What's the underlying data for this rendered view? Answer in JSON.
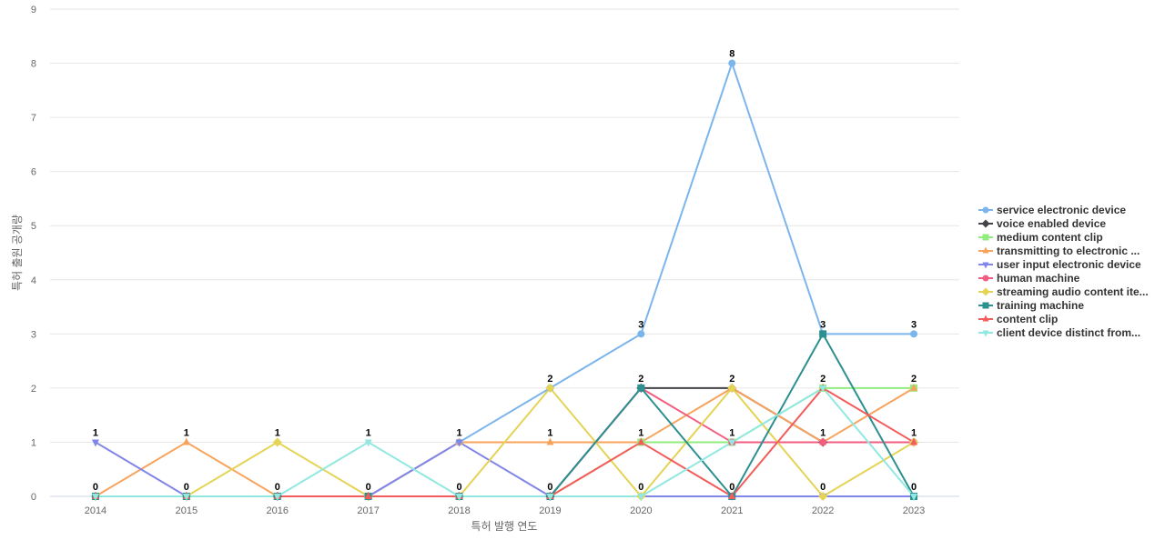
{
  "chart_data": {
    "type": "line",
    "title": "",
    "xlabel": "특허 발행 연도",
    "ylabel": "특허 출원 공개량",
    "ylim": [
      0,
      9
    ],
    "grid": true,
    "legend_position": "right",
    "categories": [
      "2014",
      "2015",
      "2016",
      "2017",
      "2018",
      "2019",
      "2020",
      "2021",
      "2022",
      "2023"
    ],
    "series": [
      {
        "name": "service electronic device",
        "color": "#7cb5ec",
        "marker": "circle",
        "values": [
          0,
          0,
          0,
          0,
          1,
          2,
          3,
          8,
          3,
          3
        ]
      },
      {
        "name": "voice enabled device",
        "color": "#434348",
        "marker": "diamond",
        "values": [
          0,
          0,
          0,
          0,
          0,
          0,
          2,
          2,
          1,
          1
        ]
      },
      {
        "name": "medium content clip",
        "color": "#90ed7d",
        "marker": "square",
        "values": [
          0,
          0,
          0,
          0,
          0,
          0,
          1,
          1,
          2,
          2
        ]
      },
      {
        "name": "transmitting to electronic ...",
        "color": "#f7a35c",
        "marker": "triangle",
        "values": [
          0,
          1,
          0,
          0,
          1,
          1,
          1,
          2,
          1,
          2
        ]
      },
      {
        "name": "user input electronic device",
        "color": "#8085e9",
        "marker": "triangle-down",
        "values": [
          1,
          0,
          0,
          0,
          1,
          0,
          0,
          0,
          0,
          0
        ]
      },
      {
        "name": "human machine",
        "color": "#f15c80",
        "marker": "circle",
        "values": [
          0,
          0,
          0,
          0,
          0,
          0,
          2,
          1,
          1,
          1
        ]
      },
      {
        "name": "streaming audio content ite...",
        "color": "#e4d354",
        "marker": "diamond",
        "values": [
          0,
          0,
          1,
          0,
          0,
          2,
          0,
          2,
          0,
          1
        ]
      },
      {
        "name": "training machine",
        "color": "#2b908f",
        "marker": "square",
        "values": [
          0,
          0,
          0,
          0,
          0,
          0,
          2,
          0,
          3,
          0
        ]
      },
      {
        "name": "content clip",
        "color": "#f45b5b",
        "marker": "triangle",
        "values": [
          0,
          0,
          0,
          0,
          0,
          0,
          1,
          0,
          2,
          1
        ]
      },
      {
        "name": "client device distinct from...",
        "color": "#91e8e1",
        "marker": "triangle-down",
        "values": [
          0,
          0,
          0,
          1,
          0,
          0,
          0,
          1,
          2,
          0
        ]
      }
    ],
    "data_labels": [
      {
        "x": "2014",
        "values": [
          "1",
          "0"
        ]
      },
      {
        "x": "2015",
        "values": [
          "1",
          "0"
        ]
      },
      {
        "x": "2016",
        "values": [
          "1",
          "0"
        ]
      },
      {
        "x": "2017",
        "values": [
          "1",
          "0"
        ]
      },
      {
        "x": "2018",
        "values": [
          "1",
          "0"
        ]
      },
      {
        "x": "2019",
        "values": [
          "2",
          "1",
          "0"
        ]
      },
      {
        "x": "2020",
        "values": [
          "3",
          "2",
          "1",
          "0"
        ]
      },
      {
        "x": "2021",
        "values": [
          "8",
          "2",
          "1",
          "0"
        ]
      },
      {
        "x": "2022",
        "values": [
          "3",
          "2",
          "1",
          "0"
        ]
      },
      {
        "x": "2023",
        "values": [
          "3",
          "2",
          "1",
          "0"
        ]
      }
    ]
  }
}
